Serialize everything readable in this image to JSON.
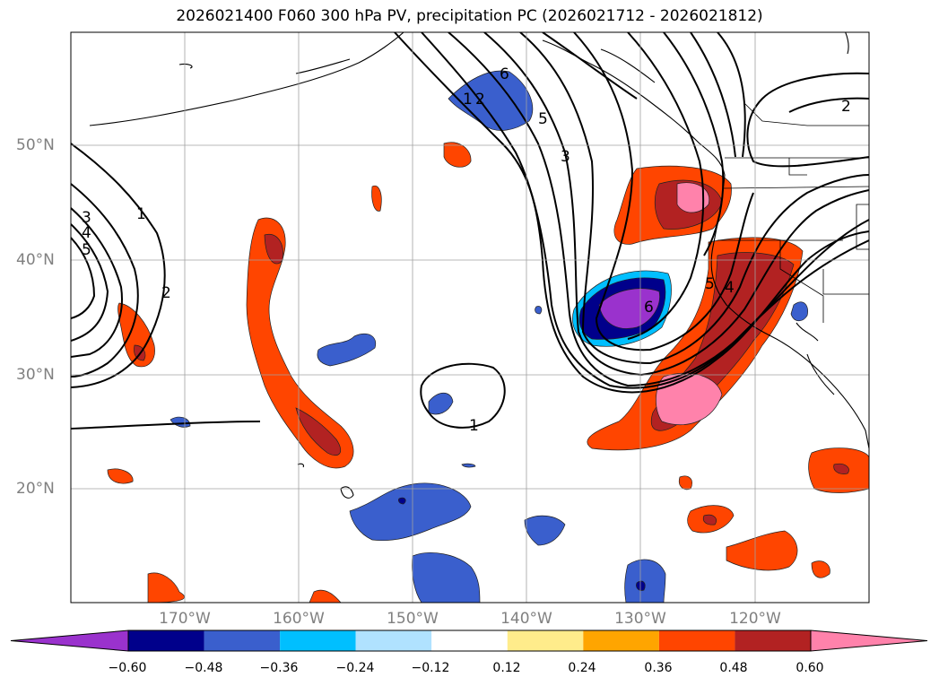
{
  "title": "2026021400 F060 300 hPa PV, precipitation PC (2026021712 - 2026021812)",
  "lat_labels": [
    "50°N",
    "40°N",
    "30°N",
    "20°N"
  ],
  "lon_labels": [
    "170°W",
    "160°W",
    "150°W",
    "140°W",
    "130°W",
    "120°W"
  ],
  "contour_labels": [
    "1",
    "2",
    "3",
    "4",
    "5",
    "1",
    "2",
    "3",
    "5",
    "6",
    "6",
    "5",
    "4",
    "1",
    "2"
  ],
  "colorbar": {
    "ticks": [
      "−0.60",
      "−0.48",
      "−0.36",
      "−0.24",
      "−0.12",
      "0.12",
      "0.24",
      "0.36",
      "0.48",
      "0.60"
    ],
    "colors": [
      "#9a32cd",
      "#00008b",
      "#3a5fcd",
      "#00bfff",
      "#b0e2ff",
      "#ffffff",
      "#ffec8b",
      "#ffa500",
      "#ff4500",
      "#b22222",
      "#ff82ab"
    ]
  }
}
